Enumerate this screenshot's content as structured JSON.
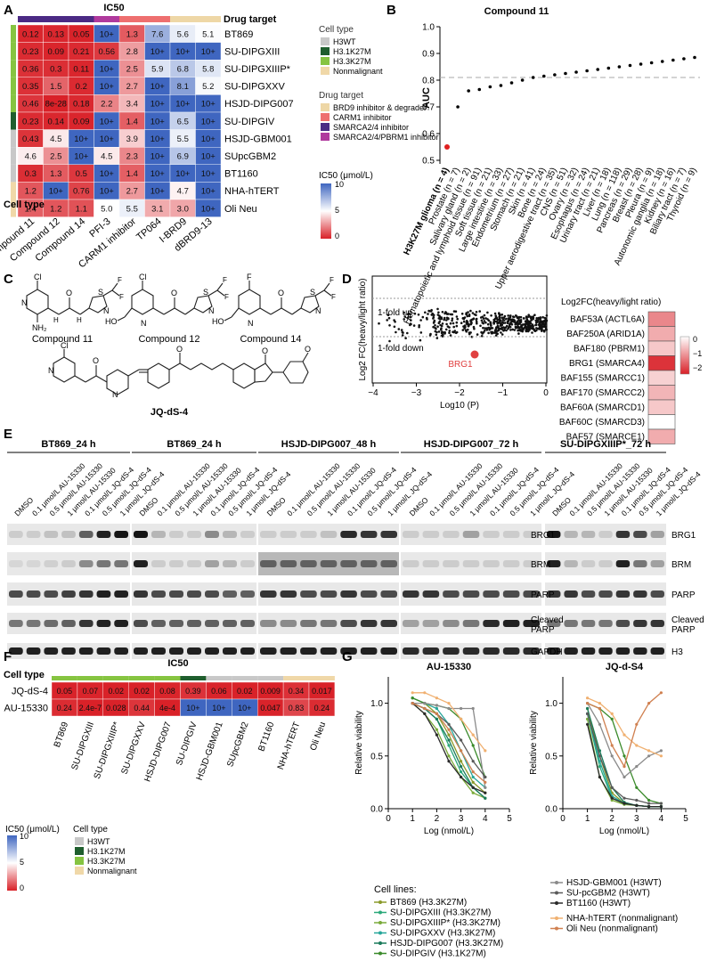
{
  "panels": {
    "A": {
      "letter": "A",
      "title": "IC50",
      "header": "Drug target",
      "row_label_header": "Cell type",
      "rows": [
        "BT869",
        "SU-DIPGXIII",
        "SU-DIPGXIIIP*",
        "SU-DIPGXXV",
        "HSJD-DIPG007",
        "SU-DIPGIV",
        "HSJD-GBM001",
        "SUpcGBM2",
        "BT1160",
        "NHA-hTERT",
        "Oli Neu"
      ],
      "row_celltype": [
        "H3.3K27M",
        "H3.3K27M",
        "H3.3K27M",
        "H3.3K27M",
        "H3.3K27M",
        "H3.1K27M",
        "H3WT",
        "H3WT",
        "H3WT",
        "Nonmalignant",
        "Nonmalignant"
      ],
      "columns": [
        "Compound 11",
        "Compound 12",
        "Compound 14",
        "PFI-3",
        "CARM1 inhibitor",
        "TP064",
        "I-BRD9",
        "dBRD9-13"
      ],
      "column_target": [
        "SMARCA2/4 inhibitor",
        "SMARCA2/4 inhibitor",
        "SMARCA2/4 inhibitor",
        "SMARCA2/4/PBRM1 inhibitor",
        "CARM1 inhibitor",
        "CARM1 inhibitor",
        "BRD9 inhibitor & degrader",
        "BRD9 inhibitor & degrader"
      ],
      "cells": [
        [
          "0.12",
          "0.13",
          "0.05",
          "10+",
          "1.3",
          "7.6",
          "5.6",
          "5.1"
        ],
        [
          "0.23",
          "0.09",
          "0.21",
          "0.56",
          "2.8",
          "10+",
          "10+",
          "10+"
        ],
        [
          "0.36",
          "0.3",
          "0.11",
          "10+",
          "2.5",
          "5.9",
          "6.8",
          "5.8"
        ],
        [
          "0.35",
          "1.5",
          "0.2",
          "10+",
          "2.7",
          "10+",
          "8.1",
          "5.2"
        ],
        [
          "0.46",
          "8e-28",
          "0.18",
          "2.2",
          "3.4",
          "10+",
          "10+",
          "10+"
        ],
        [
          "0.23",
          "0.14",
          "0.09",
          "10+",
          "1.4",
          "10+",
          "6.5",
          "10+"
        ],
        [
          "0.43",
          "4.5",
          "10+",
          "10+",
          "3.9",
          "10+",
          "5.5",
          "10+"
        ],
        [
          "4.6",
          "2.5",
          "10+",
          "4.5",
          "2.3",
          "10+",
          "6.9",
          "10+"
        ],
        [
          "0.3",
          "1.3",
          "0.5",
          "10+",
          "1.4",
          "10+",
          "10+",
          "10+"
        ],
        [
          "1.2",
          "10+",
          "0.76",
          "10+",
          "2.7",
          "10+",
          "4.7",
          "10+"
        ],
        [
          "1.4",
          "1.2",
          "1.1",
          "5.0",
          "5.5",
          "3.1",
          "3.0",
          "10+"
        ]
      ],
      "legend_celltype_title": "Cell type",
      "legend_celltype": [
        "H3WT",
        "H3.1K27M",
        "H3.3K27M",
        "Nonmalignant"
      ],
      "legend_target_title": "Drug target",
      "legend_target": [
        "BRD9 inhibitor & degrader",
        "CARM1 inhibitor",
        "SMARCA2/4 inhibitor",
        "SMARCA2/4/PBRM1 inhibitor"
      ],
      "scale_title": "IC50 (μmol/L)",
      "scale_ticks": [
        "10",
        "5",
        "0"
      ],
      "colors": {
        "H3WT": "#c8c8c8",
        "H3.1K27M": "#1f5e2e",
        "H3.3K27M": "#86c441",
        "Nonmalignant": "#f0d8a8",
        "BRD9": "#eed7a6",
        "CARM1": "#ee6f6f",
        "SMARCA24": "#4b2a84",
        "SMARCA24PBRM1": "#b03a9d",
        "high": "#3f66c0",
        "mid": "#ffffff",
        "low": "#d92128"
      }
    },
    "B": {
      "letter": "B",
      "title": "Compound 11",
      "ylabel": "AUC",
      "yticks": [
        "1.0",
        "0.9",
        "0.8",
        "0.7",
        "0.6",
        "0.5"
      ],
      "chart_data": {
        "type": "scatter",
        "title": "Compound 11",
        "ylabel": "AUC",
        "ylim": [
          0.5,
          1.0
        ],
        "threshold": 0.81,
        "categories": [
          "H3K27M glioma (n = 4)",
          "Prostate (n = 7)",
          "Salivary gland (n = 2)",
          "Hematopoietic and lymphoid tissue (n = 91)",
          "Soft tissue (n = 21)",
          "Large intestine (n = 33)",
          "Endometrium (n = 27)",
          "Stomach (n = 21)",
          "Skin (n = 41)",
          "Bone (n = 24)",
          "Upper aerodigestive tract (n = 35)",
          "CNS (n = 51)",
          "Ovary (n = 32)",
          "Esophagus (n = 24)",
          "Urinary tract (n = 21)",
          "Liver (n = 18)",
          "Lung (n = 118)",
          "Pancreas (n = 29)",
          "Breast (n = 28)",
          "Pleura (n = 9)",
          "Autonomic ganglia (n = 18)",
          "Kidney (n = 16)",
          "Biliary tract (n = 7)",
          "Thyroid (n = 9)"
        ],
        "values": [
          0.55,
          0.7,
          0.76,
          0.765,
          0.775,
          0.78,
          0.79,
          0.8,
          0.81,
          0.815,
          0.82,
          0.825,
          0.83,
          0.835,
          0.84,
          0.845,
          0.85,
          0.855,
          0.86,
          0.865,
          0.87,
          0.875,
          0.88,
          0.885
        ]
      }
    },
    "C": {
      "letter": "C",
      "labels": [
        "Compound 11",
        "Compound 12",
        "Compound 14",
        "JQ-dS-4"
      ]
    },
    "D": {
      "letter": "D",
      "xlabel": "Log10 (P)",
      "ylabel": "Log2 FC(heavy/light ratio)",
      "xticks": [
        "−4",
        "−3",
        "−2",
        "−1",
        "0"
      ],
      "line_up": "1-fold up",
      "line_down": "1-fold down",
      "highlight": "BRG1",
      "heatmap_title": "Log2FC(heavy/light ratio)",
      "heatmap_rows": [
        {
          "label": "BAF53A (ACTL6A)",
          "value": -1.3
        },
        {
          "label": "BAF250A (ARID1A)",
          "value": -0.9
        },
        {
          "label": "BAF180 (PBRM1)",
          "value": -0.6
        },
        {
          "label": "BRG1 (SMARCA4)",
          "value": -2.2
        },
        {
          "label": "BAF155 (SMARCC1)",
          "value": -0.5
        },
        {
          "label": "BAF170 (SMARCC2)",
          "value": -0.8
        },
        {
          "label": "BAF60A (SMARCD1)",
          "value": -0.6
        },
        {
          "label": "BAF60C (SMARCD3)",
          "value": 0.0
        },
        {
          "label": "BAF57 (SMARCE1)",
          "value": -0.9
        }
      ],
      "scale_ticks": [
        "0",
        "−1",
        "−2"
      ]
    },
    "E": {
      "letter": "E",
      "groups": [
        {
          "title": "BT869_24 h",
          "lanes": [
            "DMSO",
            "0.1 μmol/L AU-15330",
            "0.5 μmol/L AU-15330",
            "1 μmol/L AU-15330",
            "0.1 μmol/L JQ-dS-4",
            "0.5 μmol/L JQ-dS-4",
            "1 μmol/L JQ-dS-4"
          ]
        },
        {
          "title": "BT869_24 h",
          "lanes": [
            "DMSO",
            "0.1 μmol/L AU-15330",
            "0.5 μmol/L AU-15330",
            "1 μmol/L AU-15330",
            "0.1 μmol/L JQ-dS-4",
            "0.5 μmol/L JQ-dS-4",
            "1 μmol/L JQ-dS-4"
          ]
        },
        {
          "title": "HSJD-DIPG007_48 h",
          "lanes": [
            "DMSO",
            "0.1 μmol/L AU-15330",
            "0.5 μmol/L AU-15330",
            "1 μmol/L AU-15330",
            "0.1 μmol/L JQ-dS-4",
            "0.5 μmol/L JQ-dS-4",
            "1 μmol/L JQ-dS-4"
          ]
        },
        {
          "title": "HSJD-DIPG007_72 h",
          "lanes": [
            "DMSO",
            "0.1 μmol/L AU-15330",
            "0.5 μmol/L AU-15330",
            "1 μmol/L AU-15330",
            "0.1 μmol/L JQ-dS-4",
            "0.5 μmol/L JQ-dS-4",
            "1 μmol/L JQ-dS-4"
          ]
        },
        {
          "title": "SU-DIPGXIIIP*_72 h",
          "lanes": [
            "DMSO",
            "0.1 μmol/L AU-15330",
            "0.5 μmol/L AU-15330",
            "1 μmol/L AU-15330",
            "0.1 μmol/L JQ-dS-4",
            "0.5 μmol/L JQ-dS-4",
            "1 μmol/L JQ-dS-4"
          ]
        }
      ],
      "bands_left": [
        "BRG1",
        "BRM",
        "PARP",
        "Cleaved PARP",
        "GAPDH"
      ],
      "bands_right": [
        "BRG1",
        "BRM",
        "PARP",
        "Cleaved PARP",
        "H3"
      ]
    },
    "F": {
      "letter": "F",
      "title": "IC50",
      "row_header": "Cell type",
      "rows": [
        "JQ-dS-4",
        "AU-15330"
      ],
      "columns": [
        "BT869",
        "SU-DIPGXIII",
        "SU-DIPGXIIIP*",
        "SU-DIPGXXV",
        "HSJD-DIPG007",
        "SU-DIPGIV",
        "HSJD-GBM001",
        "SUpcGBM2",
        "BT1160",
        "NHA-hTERT",
        "Oli Neu"
      ],
      "column_celltype": [
        "H3.3K27M",
        "H3.3K27M",
        "H3.3K27M",
        "H3.3K27M",
        "H3.3K27M",
        "H3.1K27M",
        "H3WT",
        "H3WT",
        "H3WT",
        "Nonmalignant",
        "Nonmalignant"
      ],
      "cells": [
        [
          "0.05",
          "0.07",
          "0.02",
          "0.02",
          "0.08",
          "0.39",
          "0.06",
          "0.02",
          "0.009",
          "0.34",
          "0.017"
        ],
        [
          "0.24",
          "2.4e-7",
          "0.028",
          "0.44",
          "4e-4",
          "10+",
          "10+",
          "10+",
          "0.047",
          "0.83",
          "0.24"
        ]
      ],
      "scale_title": "IC50 (μmol/L)",
      "scale_ticks": [
        "10",
        "5",
        "0"
      ],
      "legend_title": "Cell type",
      "legend": [
        "H3WT",
        "H3.1K27M",
        "H3.3K27M",
        "Nonmalignant"
      ]
    },
    "G": {
      "letter": "G",
      "ylabel": "Relative viability",
      "xlabel": "Log (nmol/L)",
      "yticks": [
        "1.0",
        "0.5",
        "0.0"
      ],
      "xticks": [
        "0",
        "1",
        "2",
        "3",
        "4",
        "5"
      ],
      "chart_data": [
        {
          "type": "line",
          "title": "AU-15330",
          "xlabel": "Log (nmol/L)",
          "ylabel": "Relative viability",
          "xlim": [
            0,
            5
          ],
          "ylim": [
            0,
            1.25
          ],
          "x": [
            1.0,
            1.5,
            2.0,
            2.5,
            3.0,
            3.5,
            4.0
          ],
          "series": [
            {
              "name": "BT869 (H3.3K27M)",
              "values": [
                1.05,
                1.0,
                0.9,
                0.7,
                0.45,
                0.25,
                0.15
              ]
            },
            {
              "name": "SU-DIPGXIII (H3.3K27M)",
              "values": [
                1.0,
                0.95,
                0.85,
                0.6,
                0.35,
                0.2,
                0.1
              ]
            },
            {
              "name": "SU-DIPGXIIIP* (H3.3K27M)",
              "values": [
                1.0,
                0.9,
                0.75,
                0.5,
                0.3,
                0.15,
                0.1
              ]
            },
            {
              "name": "SU-DIPGXXV (H3.3K27M)",
              "values": [
                1.05,
                1.0,
                0.95,
                0.8,
                0.55,
                0.3,
                0.2
              ]
            },
            {
              "name": "HSJD-DIPG007 (H3.3K27M)",
              "values": [
                1.0,
                0.95,
                0.85,
                0.65,
                0.4,
                0.2,
                0.1
              ]
            },
            {
              "name": "SU-DIPGIV (H3.1K27M)",
              "values": [
                1.05,
                1.0,
                0.98,
                0.95,
                0.85,
                0.6,
                0.3
              ]
            },
            {
              "name": "HSJD-GBM001 (H3WT)",
              "values": [
                1.0,
                1.0,
                0.98,
                0.95,
                0.95,
                0.95,
                0.2
              ]
            },
            {
              "name": "SU-pcGBM2 (H3WT)",
              "values": [
                1.0,
                0.95,
                0.9,
                0.8,
                0.65,
                0.45,
                0.3
              ]
            },
            {
              "name": "BT1160 (H3WT)",
              "values": [
                1.0,
                0.9,
                0.7,
                0.45,
                0.3,
                0.2,
                0.15
              ]
            },
            {
              "name": "NHA-hTERT (nonmalignant)",
              "values": [
                1.1,
                1.1,
                1.05,
                1.0,
                0.85,
                0.7,
                0.55
              ]
            },
            {
              "name": "Oli Neu (nonmalignant)",
              "values": [
                1.0,
                0.95,
                0.9,
                0.75,
                0.55,
                0.35,
                0.25
              ]
            }
          ]
        },
        {
          "type": "line",
          "title": "JQ-d-S4",
          "xlabel": "Log (nmol/L)",
          "ylabel": "Relative viability",
          "xlim": [
            0,
            5
          ],
          "ylim": [
            0,
            1.25
          ],
          "x": [
            1.0,
            1.5,
            2.0,
            2.5,
            3.0,
            3.5,
            4.0
          ],
          "series": [
            {
              "name": "BT869 (H3.3K27M)",
              "values": [
                0.95,
                0.5,
                0.15,
                0.05,
                0.03,
                0.02,
                0.02
              ]
            },
            {
              "name": "SU-DIPGXIII (H3.3K27M)",
              "values": [
                0.9,
                0.4,
                0.1,
                0.05,
                0.03,
                0.02,
                0.02
              ]
            },
            {
              "name": "SU-DIPGXIIIP* (H3.3K27M)",
              "values": [
                0.85,
                0.3,
                0.08,
                0.04,
                0.03,
                0.02,
                0.02
              ]
            },
            {
              "name": "SU-DIPGXXV (H3.3K27M)",
              "values": [
                0.9,
                0.45,
                0.12,
                0.05,
                0.03,
                0.02,
                0.02
              ]
            },
            {
              "name": "HSJD-DIPG007 (H3.3K27M)",
              "values": [
                0.95,
                0.55,
                0.2,
                0.06,
                0.03,
                0.02,
                0.02
              ]
            },
            {
              "name": "SU-DIPGIV (H3.1K27M)",
              "values": [
                1.0,
                0.95,
                0.85,
                0.5,
                0.2,
                0.08,
                0.05
              ]
            },
            {
              "name": "HSJD-GBM001 (H3WT)",
              "values": [
                1.0,
                0.8,
                0.5,
                0.3,
                0.4,
                0.5,
                0.55
              ]
            },
            {
              "name": "SU-pcGBM2 (H3WT)",
              "values": [
                0.9,
                0.5,
                0.2,
                0.1,
                0.08,
                0.05,
                0.05
              ]
            },
            {
              "name": "BT1160 (H3WT)",
              "values": [
                0.8,
                0.3,
                0.1,
                0.05,
                0.03,
                0.02,
                0.02
              ]
            },
            {
              "name": "NHA-hTERT (nonmalignant)",
              "values": [
                1.05,
                1.0,
                0.9,
                0.7,
                0.6,
                0.55,
                0.5
              ]
            },
            {
              "name": "Oli Neu (nonmalignant)",
              "values": [
                1.0,
                0.95,
                0.6,
                0.4,
                0.8,
                1.0,
                1.1
              ]
            }
          ]
        }
      ],
      "legend_title": "Cell lines:",
      "legend_left": [
        "BT869 (H3.3K27M)",
        "SU-DIPGXIII (H3.3K27M)",
        "SU-DIPGXIIIP* (H3.3K27M)",
        "SU-DIPGXXV (H3.3K27M)",
        "HSJD-DIPG007 (H3.3K27M)",
        "SU-DIPGIV (H3.1K27M)"
      ],
      "legend_right": [
        "HSJD-GBM001 (H3WT)",
        "SU-pcGBM2 (H3WT)",
        "BT1160 (H3WT)",
        "NHA-hTERT (nonmalignant)",
        "Oli Neu (nonmalignant)"
      ],
      "series_colors": [
        "#8a9a2a",
        "#2aa87a",
        "#7aaa3a",
        "#26a69a",
        "#1a7a5a",
        "#3a8a2a",
        "#8a8a8a",
        "#5a5a5a",
        "#2a2a2a",
        "#f0b070",
        "#d08050"
      ]
    }
  }
}
